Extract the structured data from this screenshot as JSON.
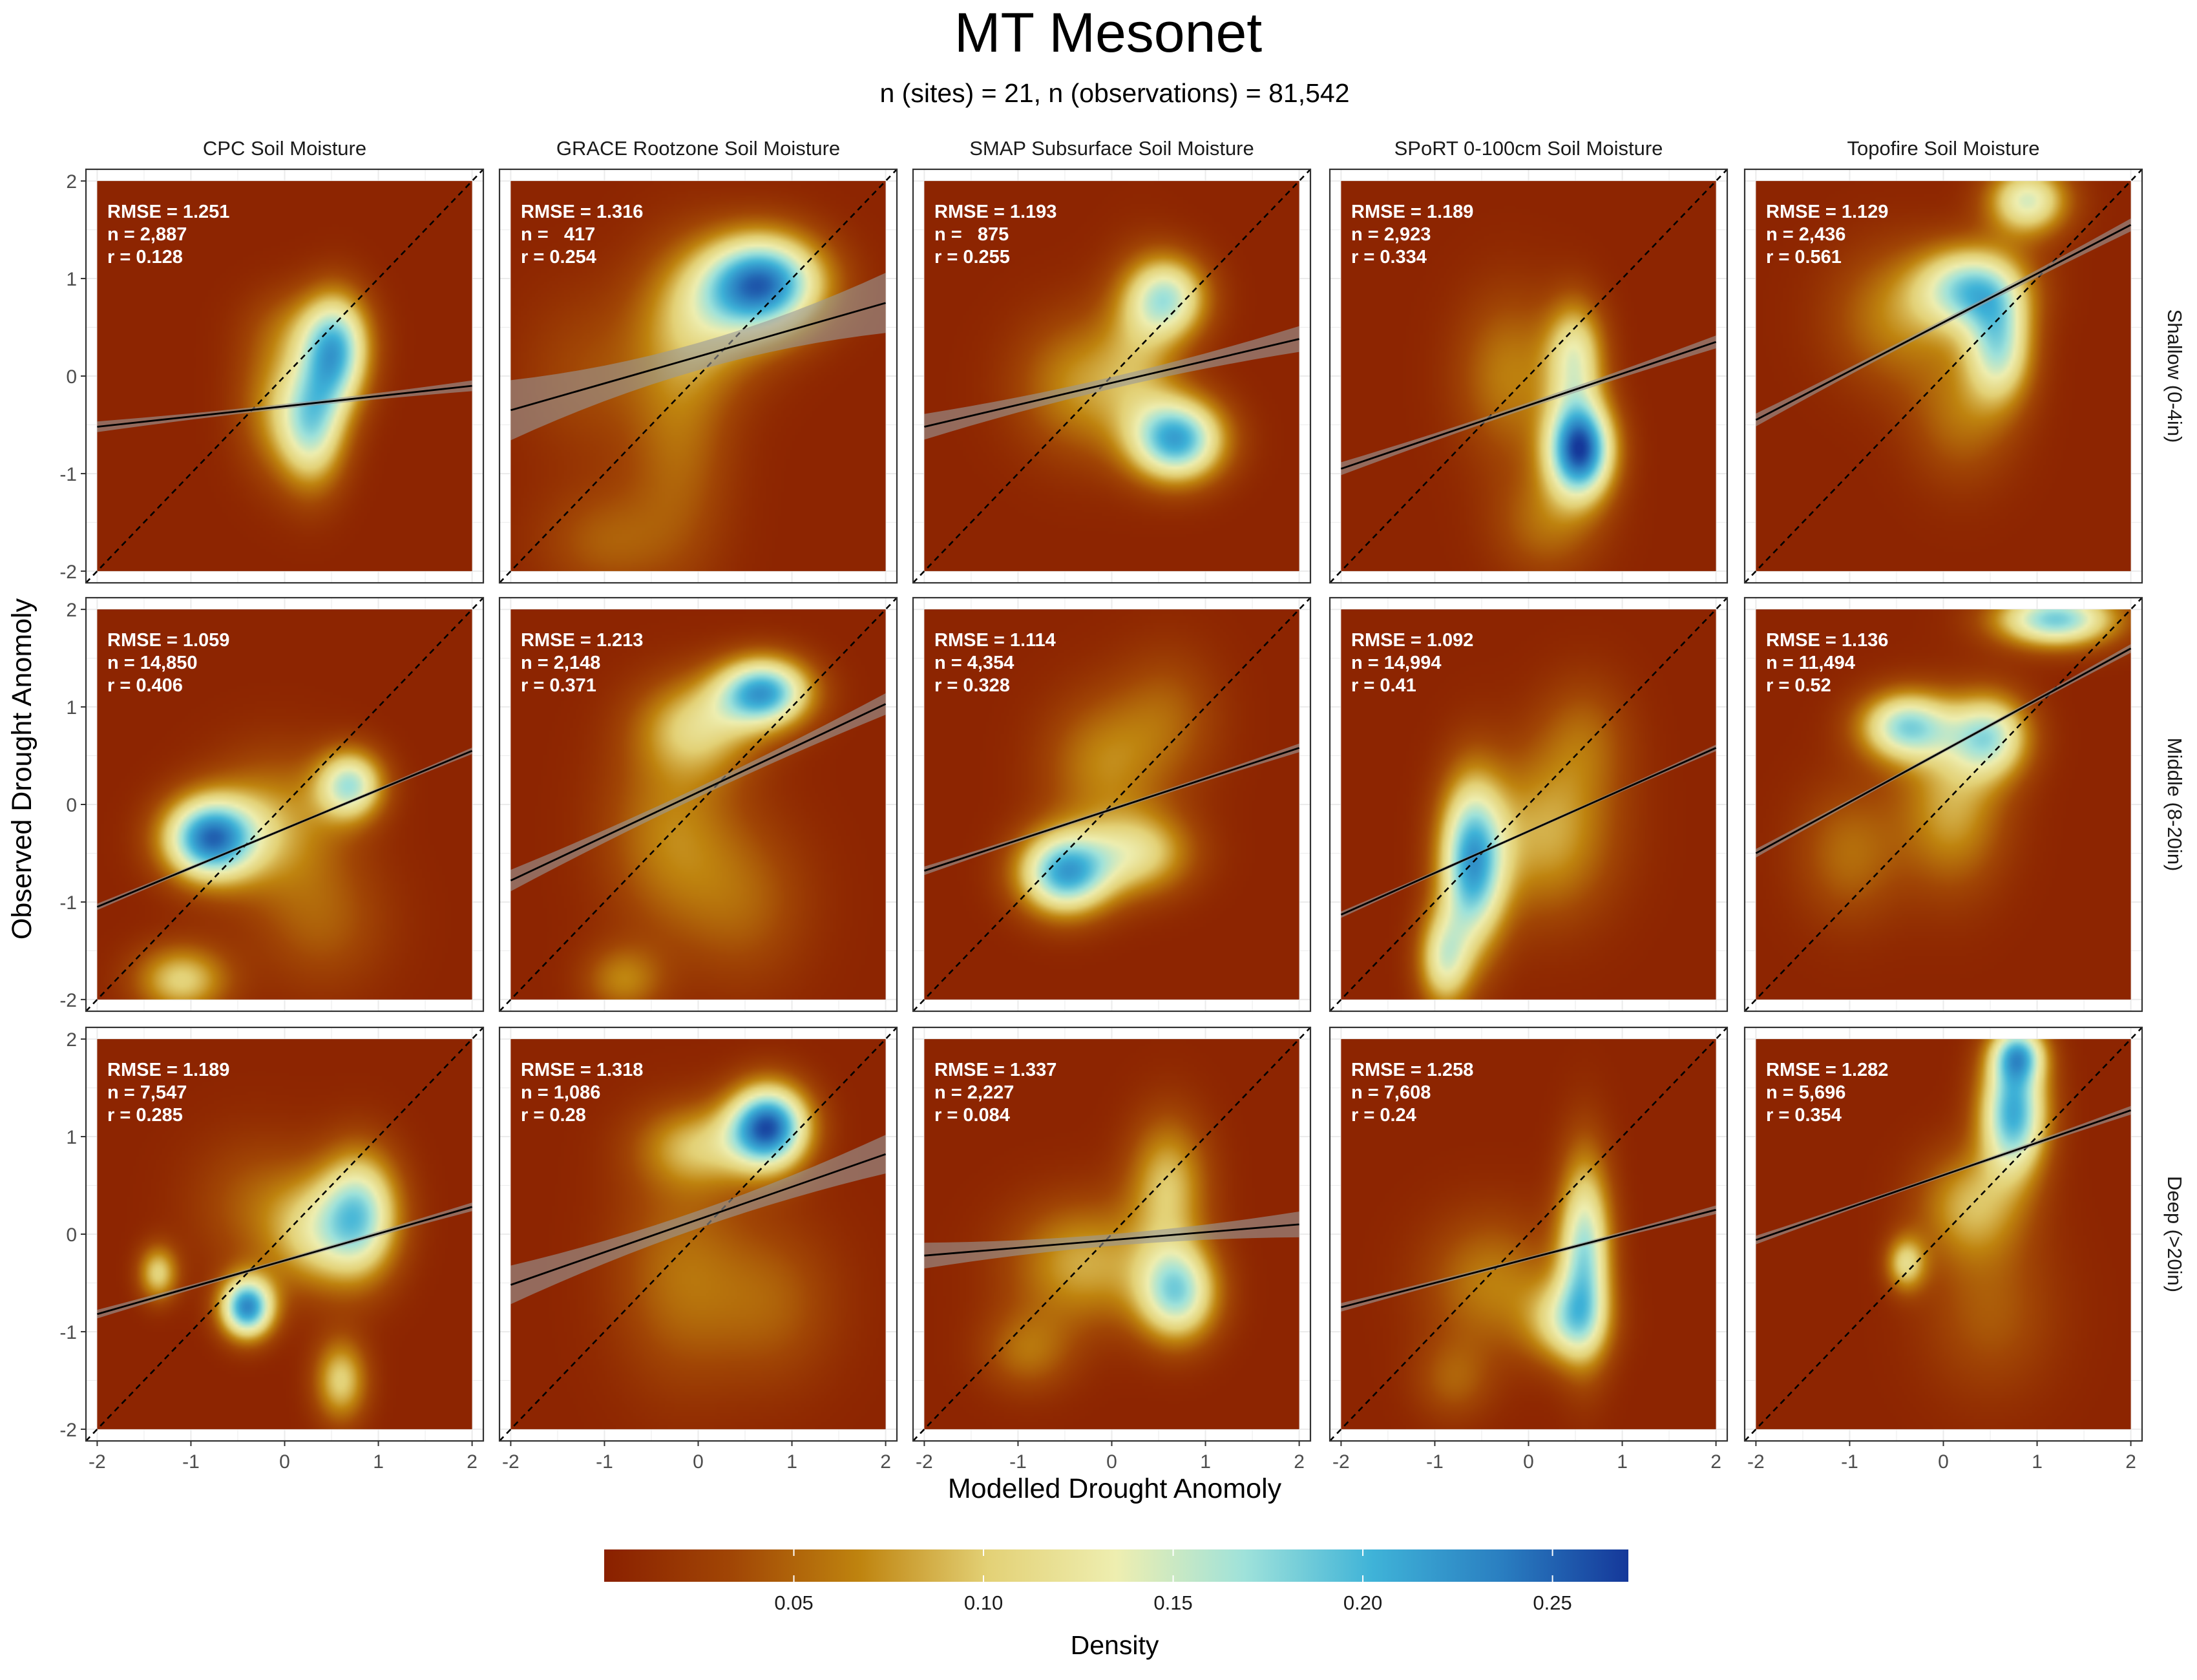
{
  "chart_data": {
    "type": "heatmap",
    "title": "MT Mesonet",
    "subtitle": "n (sites) = 21, n (observations) = 81,542",
    "xlabel": "Modelled Drought Anomoly",
    "ylabel": "Observed Drought Anomoly",
    "xlim": [
      -2,
      2
    ],
    "ylim": [
      -2,
      2
    ],
    "x_ticks": [
      "-2",
      "-1",
      "0",
      "1",
      "2"
    ],
    "y_ticks": [
      "-2",
      "-1",
      "0",
      "1",
      "2"
    ],
    "grid": true,
    "columns": [
      "CPC Soil Moisture",
      "GRACE Rootzone Soil Moisture",
      "SMAP Subsurface Soil Moisture",
      "SPoRT 0-100cm Soil Moisture",
      "Topofire Soil Moisture"
    ],
    "rows": [
      "Shallow (0-4in)",
      "Middle (8-20in)",
      "Deep (>20in)"
    ],
    "panels": [
      [
        {
          "rmse": "1.251",
          "n": "2,887",
          "r": "0.128",
          "fit": [
            -0.52,
            -0.1
          ],
          "ci": 0.025,
          "blobs": [
            [
              0.55,
              0.25,
              0.25,
              0.4,
              0.17
            ],
            [
              0.3,
              -0.5,
              0.25,
              0.45,
              0.14
            ],
            [
              -0.1,
              -0.3,
              0.3,
              0.5,
              0.06
            ],
            [
              0.2,
              0.5,
              0.4,
              0.3,
              0.04
            ]
          ]
        },
        {
          "rmse": "1.316",
          "n": "  417",
          "r": "0.254",
          "fit": [
            -0.35,
            0.75
          ],
          "ci": 0.14,
          "blobs": [
            [
              0.7,
              0.95,
              0.45,
              0.35,
              0.22
            ],
            [
              0.1,
              0.6,
              0.5,
              0.5,
              0.07
            ],
            [
              -0.2,
              -0.5,
              0.4,
              1.0,
              0.05
            ],
            [
              -1.2,
              0.0,
              0.5,
              0.6,
              0.03
            ],
            [
              -1.0,
              -1.7,
              0.5,
              0.4,
              0.04
            ]
          ]
        },
        {
          "rmse": "1.193",
          "n": "  875",
          "r": "0.255",
          "fit": [
            -0.52,
            0.38
          ],
          "ci": 0.06,
          "blobs": [
            [
              0.7,
              -0.65,
              0.35,
              0.3,
              0.2
            ],
            [
              0.6,
              0.8,
              0.3,
              0.3,
              0.14
            ],
            [
              -0.3,
              -0.1,
              0.5,
              0.5,
              0.07
            ],
            [
              0.3,
              0.3,
              0.3,
              0.6,
              0.05
            ]
          ]
        },
        {
          "rmse": "1.189",
          "n": "2,923",
          "r": "0.334",
          "fit": [
            -0.95,
            0.35
          ],
          "ci": 0.03,
          "blobs": [
            [
              0.55,
              -0.75,
              0.25,
              0.35,
              0.25
            ],
            [
              0.5,
              0.2,
              0.22,
              0.4,
              0.12
            ],
            [
              -0.2,
              0.0,
              0.4,
              0.6,
              0.06
            ],
            [
              0.2,
              -1.5,
              0.4,
              0.4,
              0.05
            ]
          ]
        },
        {
          "rmse": "1.129",
          "n": "2,436",
          "r": "0.561",
          "fit": [
            -0.45,
            1.55
          ],
          "ci": 0.03,
          "blobs": [
            [
              0.3,
              0.9,
              0.4,
              0.3,
              0.16
            ],
            [
              0.6,
              0.3,
              0.25,
              0.4,
              0.14
            ],
            [
              0.9,
              1.8,
              0.3,
              0.25,
              0.14
            ],
            [
              -0.5,
              0.6,
              0.5,
              0.5,
              0.06
            ],
            [
              0.2,
              -0.4,
              0.4,
              0.5,
              0.05
            ]
          ]
        }
      ],
      [
        {
          "rmse": "1.059",
          "n": "14,850",
          "r": "0.406",
          "fit": [
            -1.05,
            0.55
          ],
          "ci": 0.015,
          "blobs": [
            [
              -0.8,
              -0.35,
              0.35,
              0.3,
              0.22
            ],
            [
              0.7,
              0.2,
              0.25,
              0.25,
              0.15
            ],
            [
              -0.1,
              -0.2,
              0.5,
              0.5,
              0.07
            ],
            [
              -1.1,
              -1.8,
              0.35,
              0.25,
              0.1
            ],
            [
              0.4,
              -1.2,
              0.5,
              0.5,
              0.04
            ]
          ]
        },
        {
          "rmse": "1.213",
          "n": "2,148",
          "r": "0.371",
          "fit": [
            -0.78,
            1.03
          ],
          "ci": 0.05,
          "blobs": [
            [
              0.7,
              1.15,
              0.35,
              0.25,
              0.2
            ],
            [
              0.0,
              0.8,
              0.45,
              0.35,
              0.09
            ],
            [
              -0.3,
              -0.3,
              0.5,
              0.7,
              0.06
            ],
            [
              -0.8,
              -1.8,
              0.3,
              0.25,
              0.06
            ],
            [
              0.5,
              -1.0,
              0.5,
              0.6,
              0.04
            ]
          ]
        },
        {
          "rmse": "1.114",
          "n": "4,354",
          "r": "0.328",
          "fit": [
            -0.68,
            0.58
          ],
          "ci": 0.02,
          "blobs": [
            [
              -0.5,
              -0.7,
              0.35,
              0.3,
              0.2
            ],
            [
              0.3,
              -0.5,
              0.4,
              0.3,
              0.1
            ],
            [
              -0.1,
              0.4,
              0.45,
              0.5,
              0.06
            ],
            [
              0.6,
              0.9,
              0.4,
              0.5,
              0.04
            ]
          ]
        },
        {
          "rmse": "1.092",
          "n": "14,994",
          "r": "0.41",
          "fit": [
            -1.13,
            0.58
          ],
          "ci": 0.015,
          "blobs": [
            [
              -0.6,
              -0.6,
              0.25,
              0.6,
              0.2
            ],
            [
              -0.9,
              -1.6,
              0.2,
              0.35,
              0.12
            ],
            [
              0.2,
              -0.3,
              0.5,
              0.6,
              0.08
            ],
            [
              0.6,
              0.7,
              0.35,
              0.45,
              0.04
            ]
          ]
        },
        {
          "rmse": "1.136",
          "n": "11,494",
          "r": "0.52",
          "fit": [
            -0.5,
            1.6
          ],
          "ci": 0.02,
          "blobs": [
            [
              -0.4,
              0.8,
              0.35,
              0.25,
              0.16
            ],
            [
              0.5,
              0.7,
              0.3,
              0.3,
              0.14
            ],
            [
              1.2,
              1.9,
              0.45,
              0.2,
              0.18
            ],
            [
              0.1,
              0.0,
              0.4,
              0.6,
              0.08
            ],
            [
              -1.0,
              -0.5,
              0.4,
              0.5,
              0.05
            ]
          ]
        }
      ],
      [
        {
          "rmse": "1.189",
          "n": "7,547",
          "r": "0.285",
          "fit": [
            -0.82,
            0.28
          ],
          "ci": 0.02,
          "blobs": [
            [
              -0.4,
              -0.75,
              0.2,
              0.22,
              0.22
            ],
            [
              0.8,
              0.2,
              0.3,
              0.45,
              0.16
            ],
            [
              0.3,
              0.0,
              0.35,
              0.4,
              0.08
            ],
            [
              -1.35,
              -0.4,
              0.15,
              0.2,
              0.1
            ],
            [
              0.6,
              -1.5,
              0.2,
              0.3,
              0.1
            ],
            [
              -0.3,
              0.3,
              0.5,
              0.5,
              0.04
            ]
          ]
        },
        {
          "rmse": "1.318",
          "n": "1,086",
          "r": "0.28",
          "fit": [
            -0.52,
            0.82
          ],
          "ci": 0.09,
          "blobs": [
            [
              0.75,
              1.1,
              0.3,
              0.3,
              0.24
            ],
            [
              0.0,
              0.9,
              0.45,
              0.3,
              0.08
            ],
            [
              -0.2,
              -0.4,
              0.5,
              0.8,
              0.05
            ],
            [
              0.8,
              -0.7,
              0.5,
              0.6,
              0.04
            ]
          ]
        },
        {
          "rmse": "1.337",
          "n": "2,227",
          "r": "0.084",
          "fit": [
            -0.22,
            0.1
          ],
          "ci": 0.06,
          "blobs": [
            [
              0.7,
              -0.6,
              0.3,
              0.35,
              0.16
            ],
            [
              0.6,
              0.5,
              0.3,
              0.5,
              0.09
            ],
            [
              -0.3,
              -0.3,
              0.55,
              0.45,
              0.08
            ],
            [
              -0.9,
              -1.2,
              0.35,
              0.3,
              0.05
            ]
          ]
        },
        {
          "rmse": "1.258",
          "n": "7,608",
          "r": "0.24",
          "fit": [
            -0.75,
            0.25
          ],
          "ci": 0.02,
          "blobs": [
            [
              0.6,
              -0.2,
              0.2,
              0.7,
              0.16
            ],
            [
              0.4,
              -0.9,
              0.3,
              0.3,
              0.1
            ],
            [
              -0.4,
              -0.5,
              0.5,
              0.5,
              0.06
            ],
            [
              -0.8,
              -1.5,
              0.3,
              0.3,
              0.04
            ]
          ]
        },
        {
          "rmse": "1.282",
          "n": "5,696",
          "r": "0.354",
          "fit": [
            -0.06,
            1.27
          ],
          "ci": 0.02,
          "blobs": [
            [
              0.75,
              1.25,
              0.25,
              0.45,
              0.2
            ],
            [
              0.8,
              1.85,
              0.2,
              0.2,
              0.14
            ],
            [
              0.3,
              0.3,
              0.4,
              0.4,
              0.08
            ],
            [
              -0.4,
              -0.3,
              0.15,
              0.2,
              0.1
            ],
            [
              0.5,
              -0.8,
              0.5,
              0.6,
              0.04
            ]
          ]
        }
      ]
    ],
    "legend": {
      "title": "Density",
      "position": "bottom",
      "ticks": [
        "0.05",
        "0.10",
        "0.15",
        "0.20",
        "0.25"
      ],
      "tick_values": [
        0.05,
        0.1,
        0.15,
        0.2,
        0.25
      ],
      "range": [
        0.0,
        0.27
      ]
    },
    "colors": [
      "#8a2000",
      "#a14605",
      "#bf840f",
      "#e3d176",
      "#eeeeb0",
      "#9fe2da",
      "#3fb3d8",
      "#2a7fc1",
      "#15389a"
    ]
  }
}
